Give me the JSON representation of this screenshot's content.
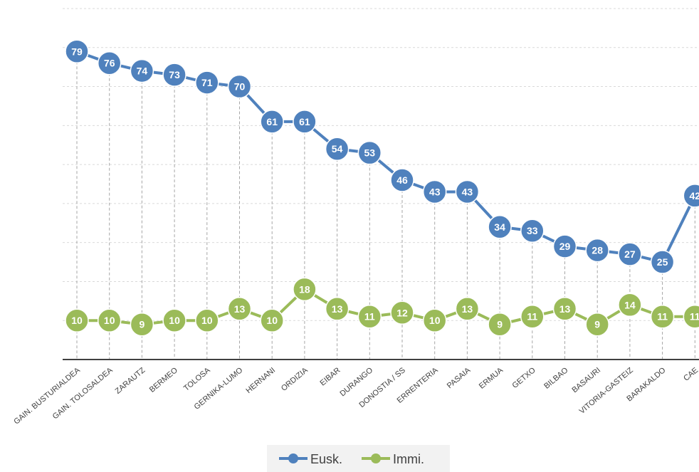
{
  "chart_data": {
    "type": "line",
    "categories": [
      "GAIN. BUSTURIALDEA",
      "GAIN. TOLOSALDEA",
      "ZARAUTZ",
      "BERMEO",
      "TOLOSA",
      "GERNIKA-LUMO",
      "HERNANI",
      "ORDIZIA",
      "EIBAR",
      "DURANGO",
      "DONOSTIA / SS",
      "ERRENTERIA",
      "PASAIA",
      "ERMUA",
      "GETXO",
      "BILBAO",
      "BASAURI",
      "VITORIA-GASTEIZ",
      "BARAKALDO",
      "CAE"
    ],
    "series": [
      {
        "name": "Eusk.",
        "color": "#4f81bd",
        "values": [
          79,
          76,
          74,
          73,
          71,
          70,
          61,
          61,
          54,
          53,
          46,
          43,
          43,
          34,
          33,
          29,
          28,
          27,
          25,
          42
        ]
      },
      {
        "name": "Immi.",
        "color": "#9bbb59",
        "values": [
          10,
          10,
          9,
          10,
          10,
          13,
          10,
          18,
          13,
          11,
          12,
          10,
          13,
          9,
          11,
          13,
          9,
          14,
          11,
          11
        ]
      }
    ],
    "ylim": [
      0,
      90
    ],
    "grid": true,
    "legend_position": "bottom"
  }
}
